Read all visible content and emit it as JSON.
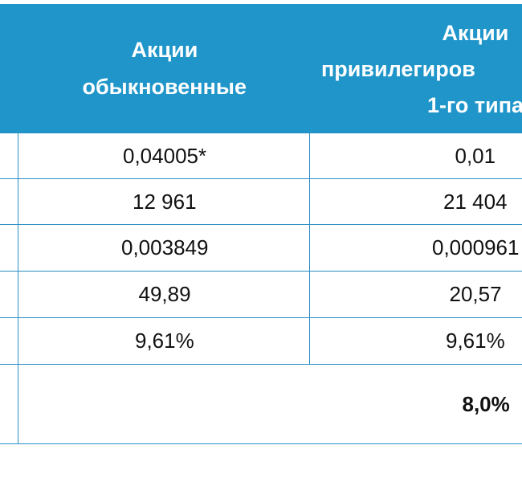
{
  "header": {
    "columns": [
      {
        "lines": [
          "Акции",
          "обыкновенные"
        ]
      },
      {
        "lines": [
          "Акции",
          "привилегиров",
          "1-го типа"
        ]
      }
    ]
  },
  "table": {
    "rows": [
      [
        "0,04005*",
        "0,01"
      ],
      [
        "12 961",
        "21 404"
      ],
      [
        "0,003849",
        "0,000961"
      ],
      [
        "49,89",
        "20,57"
      ],
      [
        "9,61%",
        "9,61%"
      ]
    ]
  },
  "total": "8,0%"
}
